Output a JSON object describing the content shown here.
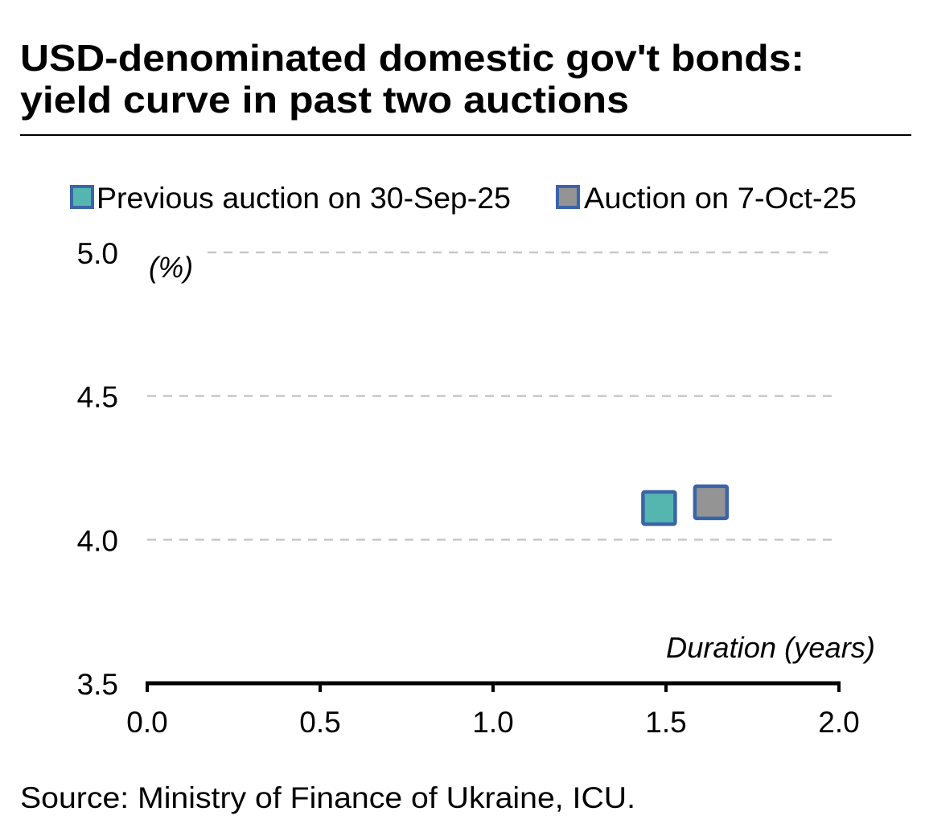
{
  "chart_data": {
    "type": "scatter",
    "title": [
      "USD-denominated domestic gov't bonds:",
      "yield curve in past two auctions"
    ],
    "xlabel": "Duration (years)",
    "ylabel": "(%)",
    "xlim": [
      0.0,
      2.0
    ],
    "ylim": [
      3.5,
      5.0
    ],
    "xticks": [
      "0.0",
      "0.5",
      "1.0",
      "1.5",
      "2.0"
    ],
    "yticks": [
      "5.0",
      "4.5",
      "4.0",
      "3.5"
    ],
    "grid": "horizontal dashed",
    "legend_position": "top",
    "series": [
      {
        "name": "Previous auction on 30-Sep-25",
        "color": "#55b6b0",
        "edge": "#3c64a8",
        "points": [
          {
            "x": 1.48,
            "y": 4.11
          }
        ]
      },
      {
        "name": "Auction on 7-Oct-25",
        "color": "#949494",
        "edge": "#3c64a8",
        "points": [
          {
            "x": 1.63,
            "y": 4.13
          }
        ]
      }
    ],
    "source": "Source: Ministry of Finance of Ukraine, ICU."
  }
}
